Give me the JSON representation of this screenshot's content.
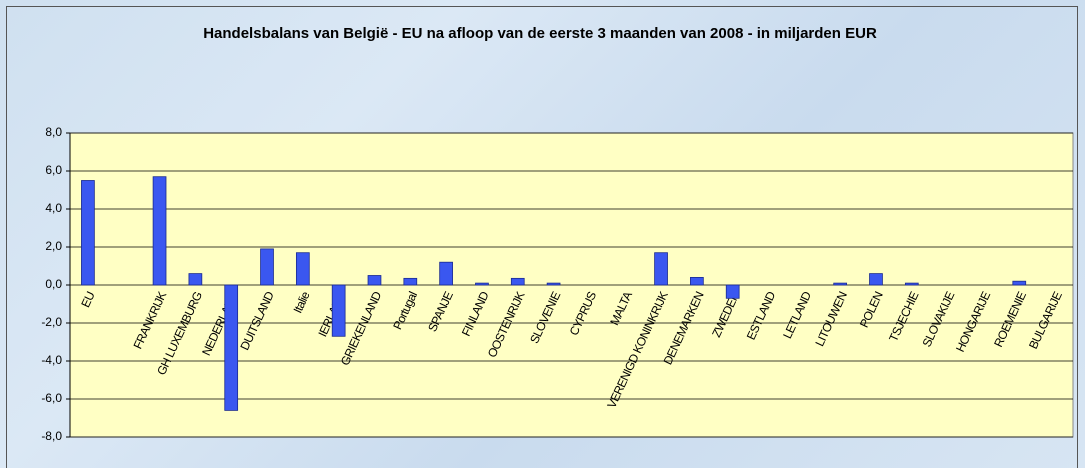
{
  "chart_data": {
    "type": "bar",
    "title": "Handelsbalans van België - EU na afloop van de eerste 3 maanden van 2008 - in miljarden EUR",
    "categories": [
      "EU",
      null,
      "FRANKRIJK",
      "GH LUXEMBURG",
      "NEDERLAND",
      "DUITSLAND",
      "Italie",
      "IERLAND",
      "GRIEKENLAND",
      "Portugal",
      "SPANJE",
      "FINLAND",
      "OOSTENRIJK",
      "SLOVENIE",
      "CYPRUS",
      "MALTA",
      "VERENIGD KONINKRIJK",
      "DENEMARKEN",
      "ZWEDEN",
      "ESTLAND",
      "LETLAND",
      "LITOUWEN",
      "POLEN",
      "TSJECHIE",
      "SLOVAKIJE",
      "HONGARIJE",
      "ROEMENIE",
      "BULGARIJE"
    ],
    "values": [
      5.5,
      null,
      5.7,
      0.6,
      -6.6,
      1.9,
      1.7,
      -2.7,
      0.5,
      0.35,
      1.2,
      0.1,
      0.35,
      0.1,
      0,
      0,
      1.7,
      0.4,
      -0.7,
      0,
      0,
      0.1,
      0.6,
      0.1,
      0,
      0,
      0.2,
      0
    ],
    "color": "#3a57f0",
    "ylim": [
      -8,
      8
    ],
    "yticks": [
      {
        "value": -8,
        "label": "-8,0"
      },
      {
        "value": -6,
        "label": "-6,0"
      },
      {
        "value": -4,
        "label": "-4,0"
      },
      {
        "value": -2,
        "label": "-2,0"
      },
      {
        "value": 0,
        "label": "0,0"
      },
      {
        "value": 2,
        "label": "2,0"
      },
      {
        "value": 4,
        "label": "4,0"
      },
      {
        "value": 6,
        "label": "6,0"
      },
      {
        "value": 8,
        "label": "8,0"
      }
    ],
    "grid": true
  }
}
